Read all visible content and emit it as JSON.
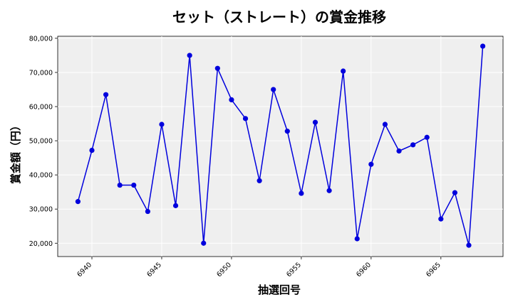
{
  "chart_data": {
    "type": "line",
    "title": "セット（ストレート）の賞金推移",
    "xlabel": "抽選回号",
    "ylabel": "賞金額（円）",
    "x": [
      6939,
      6940,
      6941,
      6942,
      6943,
      6944,
      6945,
      6946,
      6947,
      6948,
      6949,
      6950,
      6951,
      6952,
      6953,
      6954,
      6955,
      6956,
      6957,
      6958,
      6959,
      6960,
      6961,
      6962,
      6963,
      6964,
      6965,
      6966,
      6967,
      6968
    ],
    "series": [
      {
        "values": [
          32200,
          47200,
          63500,
          37000,
          37000,
          29300,
          54800,
          31000,
          75000,
          20000,
          71200,
          62000,
          56500,
          38300,
          65000,
          52800,
          34600,
          55400,
          35400,
          70400,
          21300,
          43100,
          54800,
          47000,
          48800,
          51000,
          27100,
          34800,
          19400,
          77700
        ],
        "color": "#0000dd"
      }
    ],
    "xticks": [
      6940,
      6945,
      6950,
      6955,
      6960,
      6965
    ],
    "yticks": [
      20000,
      30000,
      40000,
      50000,
      60000,
      70000,
      80000
    ],
    "ytick_labels": [
      "20,000",
      "30,000",
      "40,000",
      "50,000",
      "60,000",
      "70,000",
      "80,000"
    ],
    "xlim": [
      6937.55,
      6969.45
    ],
    "ylim": [
      16100,
      80600
    ],
    "grid": true,
    "background": "#efefef"
  }
}
